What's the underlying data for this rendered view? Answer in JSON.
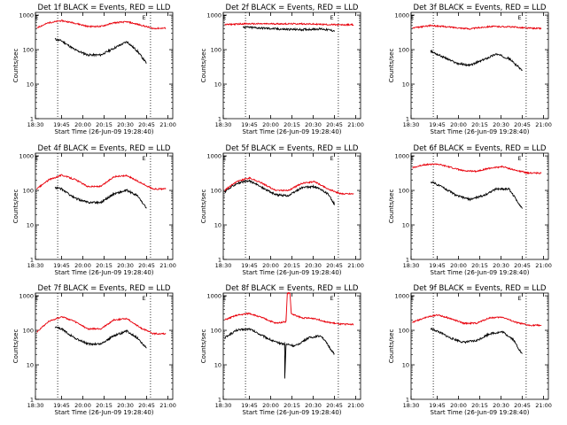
{
  "colors": {
    "events": "#000000",
    "lld": "#e8000b"
  },
  "chart_data": [
    {
      "type": "line",
      "title": "Det 1f BLACK = Events, RED = LLD",
      "ylabel": "Counts/sec",
      "xlabel": "Start Time (26-Jun-09 19:28:40)",
      "x_ticks": [
        "18:30",
        "19:45",
        "20:00",
        "20:15",
        "20:30",
        "20:45",
        "21:00"
      ],
      "y_ticks": [
        "1",
        "10",
        "100",
        "1000"
      ],
      "y_scale": "log",
      "ylim": [
        1,
        1200
      ],
      "markers": [
        {
          "label": "E",
          "x": "19:31"
        },
        {
          "label": "E",
          "x": "20:53"
        }
      ],
      "vlines": [
        "19:47",
        "20:58"
      ],
      "series": [
        {
          "name": "BLACK = Events",
          "x": [
            "19:45",
            "19:50",
            "20:00",
            "20:10",
            "20:20",
            "20:30",
            "20:40",
            "20:48",
            "20:55"
          ],
          "y": [
            200,
            180,
            100,
            70,
            70,
            110,
            170,
            90,
            40
          ]
        },
        {
          "name": "RED = LLD",
          "x": [
            "19:31",
            "19:40",
            "19:50",
            "20:00",
            "20:10",
            "20:20",
            "20:30",
            "20:40",
            "20:50",
            "21:00",
            "21:10"
          ],
          "y": [
            430,
            600,
            690,
            590,
            470,
            470,
            600,
            640,
            520,
            410,
            420
          ]
        }
      ]
    },
    {
      "type": "line",
      "title": "Det 2f BLACK = Events, RED = LLD",
      "ylabel": "Counts/sec",
      "xlabel": "Start Time (26-Jun-09 19:28:40)",
      "x_ticks": [
        "18:30",
        "19:45",
        "20:00",
        "20:15",
        "20:30",
        "20:45",
        "21:00"
      ],
      "y_ticks": [
        "1",
        "10",
        "100",
        "1000"
      ],
      "y_scale": "log",
      "ylim": [
        1,
        1200
      ],
      "markers": [
        {
          "label": "E",
          "x": "19:31"
        },
        {
          "label": "E",
          "x": "20:53"
        }
      ],
      "vlines": [
        "19:47",
        "20:58"
      ],
      "series": [
        {
          "name": "BLACK = Events",
          "x": [
            "19:45",
            "20:00",
            "20:15",
            "20:30",
            "20:45",
            "20:55"
          ],
          "y": [
            450,
            420,
            390,
            380,
            400,
            350
          ]
        },
        {
          "name": "RED = LLD",
          "x": [
            "19:31",
            "19:45",
            "20:00",
            "20:15",
            "20:30",
            "20:45",
            "21:00",
            "21:10"
          ],
          "y": [
            530,
            560,
            560,
            560,
            560,
            540,
            520,
            530
          ]
        }
      ]
    },
    {
      "type": "line",
      "title": "Det 3f BLACK = Events, RED = LLD",
      "ylabel": "Counts/sec",
      "xlabel": "Start Time (26-Jun-09 19:28:40)",
      "x_ticks": [
        "18:30",
        "19:45",
        "20:00",
        "20:15",
        "20:30",
        "20:45",
        "21:00"
      ],
      "y_ticks": [
        "1",
        "10",
        "100",
        "1000"
      ],
      "y_scale": "log",
      "ylim": [
        1,
        1200
      ],
      "markers": [
        {
          "label": "E",
          "x": "19:31"
        },
        {
          "label": "E",
          "x": "20:53"
        }
      ],
      "vlines": [
        "19:47",
        "20:58"
      ],
      "series": [
        {
          "name": "BLACK = Events",
          "x": [
            "19:45",
            "19:55",
            "20:05",
            "20:15",
            "20:25",
            "20:35",
            "20:45",
            "20:55"
          ],
          "y": [
            90,
            60,
            40,
            35,
            50,
            75,
            55,
            25
          ]
        },
        {
          "name": "RED = LLD",
          "x": [
            "19:31",
            "19:45",
            "20:00",
            "20:15",
            "20:30",
            "20:45",
            "21:00",
            "21:10"
          ],
          "y": [
            420,
            500,
            450,
            400,
            470,
            460,
            420,
            410
          ]
        }
      ]
    },
    {
      "type": "line",
      "title": "Det 4f BLACK = Events, RED = LLD",
      "ylabel": "Counts/sec",
      "xlabel": "Start Time (26-Jun-09 19:28:40)",
      "x_ticks": [
        "18:30",
        "19:45",
        "20:00",
        "20:15",
        "20:30",
        "20:45",
        "21:00"
      ],
      "y_ticks": [
        "1",
        "10",
        "100",
        "1000"
      ],
      "y_scale": "log",
      "ylim": [
        1,
        1200
      ],
      "markers": [
        {
          "label": "E",
          "x": "19:31"
        },
        {
          "label": "E",
          "x": "20:53"
        }
      ],
      "vlines": [
        "19:47",
        "20:58"
      ],
      "series": [
        {
          "name": "BLACK = Events",
          "x": [
            "19:45",
            "19:50",
            "20:00",
            "20:10",
            "20:20",
            "20:30",
            "20:40",
            "20:48",
            "20:55"
          ],
          "y": [
            120,
            110,
            60,
            45,
            45,
            80,
            100,
            70,
            30
          ]
        },
        {
          "name": "RED = LLD",
          "x": [
            "19:31",
            "19:40",
            "19:50",
            "20:00",
            "20:10",
            "20:20",
            "20:30",
            "20:40",
            "20:50",
            "21:00",
            "21:10"
          ],
          "y": [
            110,
            200,
            280,
            210,
            130,
            130,
            250,
            270,
            170,
            110,
            110
          ]
        }
      ]
    },
    {
      "type": "line",
      "title": "Det 5f BLACK = Events, RED = LLD",
      "ylabel": "Counts/sec",
      "xlabel": "Start Time (26-Jun-09 19:28:40)",
      "x_ticks": [
        "18:30",
        "19:45",
        "20:00",
        "20:15",
        "20:30",
        "20:45",
        "21:00"
      ],
      "y_ticks": [
        "1",
        "10",
        "100",
        "1000"
      ],
      "y_scale": "log",
      "ylim": [
        1,
        1200
      ],
      "markers": [
        {
          "label": "E",
          "x": "19:31"
        },
        {
          "label": "E",
          "x": "20:53"
        }
      ],
      "vlines": [
        "19:47",
        "20:58"
      ],
      "series": [
        {
          "name": "BLACK = Events",
          "x": [
            "19:31",
            "19:40",
            "19:50",
            "20:00",
            "20:10",
            "20:20",
            "20:30",
            "20:40",
            "20:50",
            "20:55"
          ],
          "y": [
            90,
            160,
            190,
            120,
            75,
            70,
            120,
            130,
            80,
            40
          ]
        },
        {
          "name": "RED = LLD",
          "x": [
            "19:31",
            "19:40",
            "19:50",
            "20:00",
            "20:10",
            "20:20",
            "20:30",
            "20:40",
            "20:50",
            "21:00",
            "21:10"
          ],
          "y": [
            100,
            180,
            230,
            160,
            100,
            100,
            160,
            180,
            110,
            80,
            80
          ]
        }
      ]
    },
    {
      "type": "line",
      "title": "Det 6f BLACK = Events, RED = LLD",
      "ylabel": "Counts/sec",
      "xlabel": "Start Time (26-Jun-09 19:28:40)",
      "x_ticks": [
        "18:30",
        "19:45",
        "20:00",
        "20:15",
        "20:30",
        "20:45",
        "21:00"
      ],
      "y_ticks": [
        "1",
        "10",
        "100",
        "1000"
      ],
      "y_scale": "log",
      "ylim": [
        1,
        1200
      ],
      "markers": [
        {
          "label": "E",
          "x": "19:31"
        },
        {
          "label": "E",
          "x": "20:53"
        }
      ],
      "vlines": [
        "19:47",
        "20:58"
      ],
      "series": [
        {
          "name": "BLACK = Events",
          "x": [
            "19:45",
            "19:55",
            "20:05",
            "20:15",
            "20:25",
            "20:35",
            "20:45",
            "20:55"
          ],
          "y": [
            180,
            120,
            70,
            55,
            70,
            110,
            110,
            30
          ]
        },
        {
          "name": "RED = LLD",
          "x": [
            "19:31",
            "19:40",
            "19:50",
            "20:00",
            "20:10",
            "20:20",
            "20:30",
            "20:40",
            "20:50",
            "21:00",
            "21:10"
          ],
          "y": [
            450,
            560,
            580,
            470,
            370,
            360,
            440,
            490,
            380,
            320,
            320
          ]
        }
      ]
    },
    {
      "type": "line",
      "title": "Det 7f BLACK = Events, RED = LLD",
      "ylabel": "Counts/sec",
      "xlabel": "Start Time (26-Jun-09 19:28:40)",
      "x_ticks": [
        "18:30",
        "19:45",
        "20:00",
        "20:15",
        "20:30",
        "20:45",
        "21:00"
      ],
      "y_ticks": [
        "1",
        "10",
        "100",
        "1000"
      ],
      "y_scale": "log",
      "ylim": [
        1,
        1200
      ],
      "markers": [
        {
          "label": "E",
          "x": "19:31"
        },
        {
          "label": "E",
          "x": "20:53"
        }
      ],
      "vlines": [
        "19:47",
        "20:58"
      ],
      "series": [
        {
          "name": "BLACK = Events",
          "x": [
            "19:45",
            "19:50",
            "20:00",
            "20:10",
            "20:20",
            "20:30",
            "20:40",
            "20:48",
            "20:55"
          ],
          "y": [
            120,
            110,
            60,
            40,
            40,
            70,
            95,
            60,
            30
          ]
        },
        {
          "name": "RED = LLD",
          "x": [
            "19:31",
            "19:40",
            "19:50",
            "20:00",
            "20:10",
            "20:20",
            "20:30",
            "20:40",
            "20:50",
            "21:00",
            "21:10"
          ],
          "y": [
            90,
            180,
            250,
            180,
            110,
            110,
            200,
            220,
            120,
            80,
            80
          ]
        }
      ]
    },
    {
      "type": "line",
      "title": "Det 8f BLACK = Events, RED = LLD",
      "ylabel": "Counts/sec",
      "xlabel": "Start Time (26-Jun-09 19:28:40)",
      "x_ticks": [
        "18:30",
        "19:45",
        "20:00",
        "20:15",
        "20:30",
        "20:45",
        "21:00"
      ],
      "y_ticks": [
        "1",
        "10",
        "100",
        "1000"
      ],
      "y_scale": "log",
      "ylim": [
        1,
        1200
      ],
      "markers": [
        {
          "label": "E",
          "x": "19:31"
        },
        {
          "label": "E",
          "x": "20:53"
        }
      ],
      "vlines": [
        "19:47",
        "20:58"
      ],
      "series": [
        {
          "name": "BLACK = Events",
          "x": [
            "19:31",
            "19:40",
            "19:50",
            "20:00",
            "20:10",
            "20:17",
            "20:17",
            "20:18",
            "20:25",
            "20:35",
            "20:45",
            "20:55"
          ],
          "y": [
            60,
            100,
            110,
            70,
            45,
            40,
            4,
            40,
            35,
            60,
            70,
            20
          ]
        },
        {
          "name": "RED = LLD",
          "x": [
            "19:31",
            "19:40",
            "19:50",
            "20:00",
            "20:10",
            "20:18",
            "20:19",
            "20:21",
            "20:22",
            "20:30",
            "20:40",
            "20:50",
            "21:00",
            "21:10"
          ],
          "y": [
            200,
            270,
            310,
            230,
            160,
            180,
            1200,
            1200,
            300,
            230,
            220,
            170,
            150,
            150
          ]
        }
      ]
    },
    {
      "type": "line",
      "title": "Det 9f BLACK = Events, RED = LLD",
      "ylabel": "Counts/sec",
      "xlabel": "Start Time (26-Jun-09 19:28:40)",
      "x_ticks": [
        "18:30",
        "19:45",
        "20:00",
        "20:15",
        "20:30",
        "20:45",
        "21:00"
      ],
      "y_ticks": [
        "1",
        "10",
        "100",
        "1000"
      ],
      "y_scale": "log",
      "ylim": [
        1,
        1200
      ],
      "markers": [
        {
          "label": "E",
          "x": "19:31"
        },
        {
          "label": "E",
          "x": "20:53"
        }
      ],
      "vlines": [
        "19:47",
        "20:58"
      ],
      "series": [
        {
          "name": "BLACK = Events",
          "x": [
            "19:45",
            "19:50",
            "20:00",
            "20:10",
            "20:20",
            "20:30",
            "20:40",
            "20:48",
            "20:55"
          ],
          "y": [
            110,
            95,
            60,
            45,
            50,
            80,
            90,
            55,
            20
          ]
        },
        {
          "name": "RED = LLD",
          "x": [
            "19:31",
            "19:40",
            "19:50",
            "20:00",
            "20:10",
            "20:20",
            "20:30",
            "20:40",
            "20:50",
            "21:00",
            "21:10"
          ],
          "y": [
            170,
            230,
            280,
            220,
            160,
            160,
            230,
            240,
            170,
            140,
            140
          ]
        }
      ]
    }
  ]
}
